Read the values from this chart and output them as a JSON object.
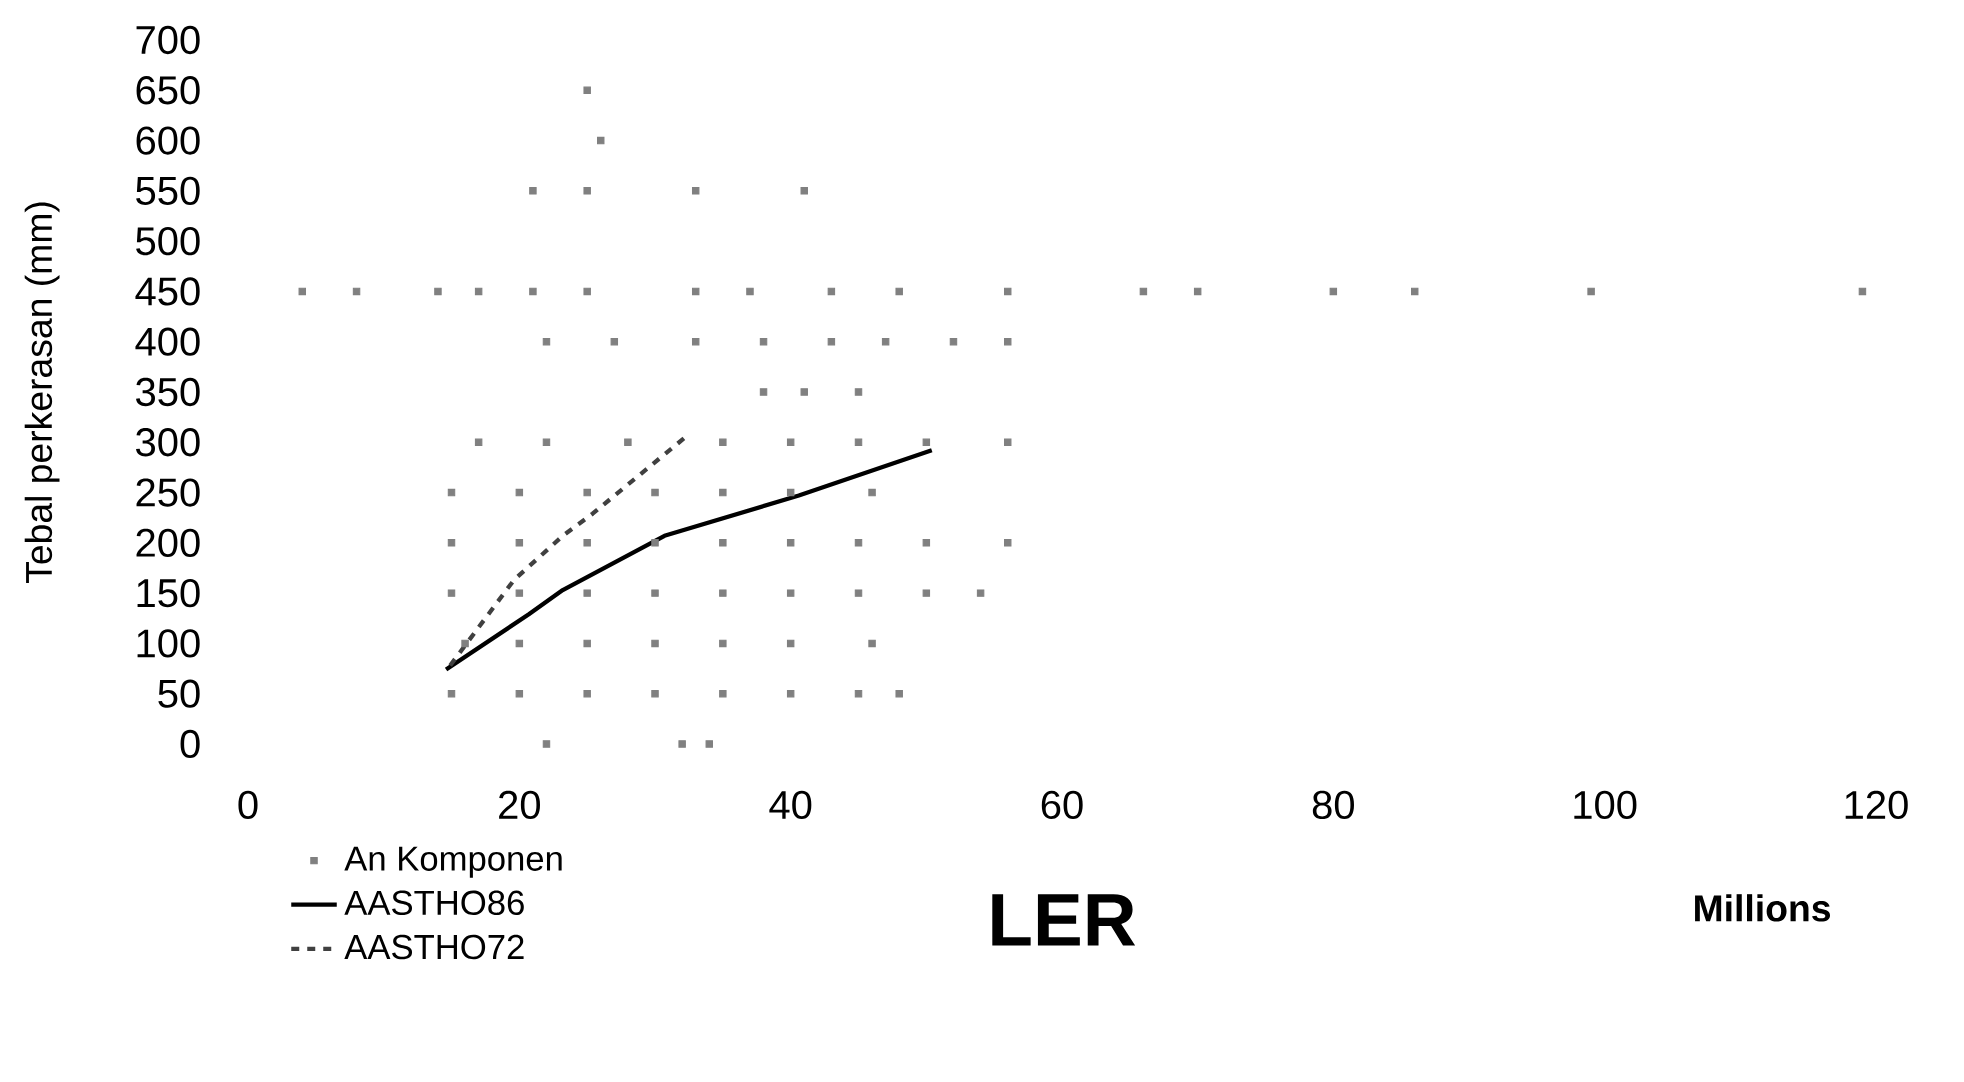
{
  "chart_data": {
    "type": "scatter",
    "ylabel": "Tebal perkerasan (mm)",
    "xlabel": "LER",
    "annotations": [
      "Millions"
    ],
    "xlim": [
      0,
      120
    ],
    "xticks": [
      0,
      20,
      40,
      60,
      80,
      100,
      120
    ],
    "ylim": [
      0,
      700
    ],
    "yticks": [
      0,
      50,
      100,
      150,
      200,
      250,
      300,
      350,
      400,
      450,
      500,
      550,
      600,
      650,
      700
    ],
    "legend": "bottom left",
    "series": [
      {
        "name": "An Komponen",
        "marker": "square",
        "color": "#808080",
        "x": [
          22,
          32,
          34,
          15,
          20,
          25,
          30,
          35,
          40,
          45,
          48,
          16,
          20,
          25,
          30,
          35,
          40,
          46,
          15,
          20,
          25,
          30,
          35,
          40,
          45,
          50,
          54,
          15,
          20,
          25,
          30,
          35,
          40,
          45,
          50,
          56,
          15,
          20,
          25,
          30,
          35,
          40,
          46,
          17,
          22,
          28,
          35,
          40,
          45,
          50,
          56,
          38,
          41,
          45,
          22,
          27,
          33,
          38,
          43,
          47,
          52,
          56,
          4,
          8,
          14,
          17,
          21,
          25,
          33,
          37,
          43,
          48,
          56,
          66,
          70,
          80,
          86,
          99,
          119,
          21,
          25,
          33,
          41,
          26,
          25
        ],
        "values": [
          0,
          0,
          0,
          50,
          50,
          50,
          50,
          50,
          50,
          50,
          50,
          100,
          100,
          100,
          100,
          100,
          100,
          100,
          150,
          150,
          150,
          150,
          150,
          150,
          150,
          150,
          150,
          200,
          200,
          200,
          200,
          200,
          200,
          200,
          200,
          200,
          250,
          250,
          250,
          250,
          250,
          250,
          250,
          300,
          300,
          300,
          300,
          300,
          300,
          300,
          300,
          350,
          350,
          350,
          400,
          400,
          400,
          400,
          400,
          400,
          400,
          400,
          450,
          450,
          450,
          450,
          450,
          450,
          450,
          450,
          450,
          450,
          450,
          450,
          450,
          450,
          450,
          450,
          450,
          550,
          550,
          550,
          550,
          600,
          650
        ]
      },
      {
        "name": "AASTHO86",
        "type": "line",
        "marker": "none",
        "line_style": "solid",
        "color": "#000000",
        "x": [
          14.6,
          20.7,
          23.2,
          30.7,
          40.6,
          50.4
        ],
        "values": [
          74,
          129,
          153,
          207,
          247,
          292
        ]
      },
      {
        "name": "AASTHO72",
        "type": "line",
        "marker": "none",
        "line_style": "dashed",
        "color": "#404040",
        "x": [
          14.9,
          19.6,
          23.2,
          25.4,
          32.5
        ],
        "values": [
          78,
          163,
          207,
          229,
          308
        ]
      }
    ]
  }
}
